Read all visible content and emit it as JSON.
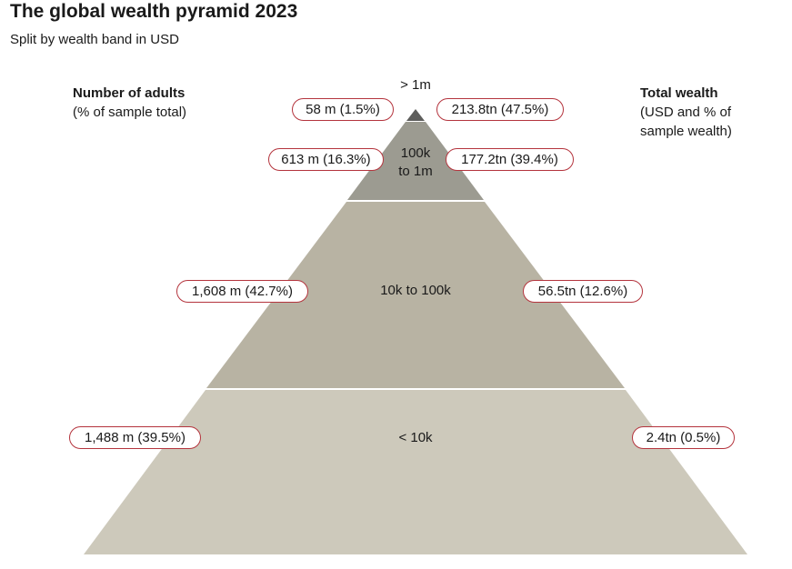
{
  "title": "The global wealth pyramid 2023",
  "subtitle": "Split by wealth band in USD",
  "left_heading": {
    "title": "Number of adults",
    "subtitle": "(% of sample total)"
  },
  "right_heading": {
    "title": "Total wealth",
    "subtitle_line1": "(USD and % of",
    "subtitle_line2": "sample wealth)"
  },
  "colors": {
    "band_top": "#5e5e5c",
    "band_upper": "#9c9b91",
    "band_middle": "#b8b3a3",
    "band_base": "#cdc9bb",
    "pill_border": "#b4343d"
  },
  "bands": [
    {
      "label": "> 1m",
      "adults": "58 m (1.5%)",
      "wealth": "213.8tn (47.5%)",
      "adults_millions": 58,
      "adults_pct": 1.5,
      "wealth_tn": 213.8,
      "wealth_pct": 47.5
    },
    {
      "label_line1": "100k",
      "label_line2": "to 1m",
      "adults": "613 m (16.3%)",
      "wealth": "177.2tn (39.4%)",
      "adults_millions": 613,
      "adults_pct": 16.3,
      "wealth_tn": 177.2,
      "wealth_pct": 39.4
    },
    {
      "label": "10k to 100k",
      "adults": "1,608 m (42.7%)",
      "wealth": "56.5tn (12.6%)",
      "adults_millions": 1608,
      "adults_pct": 42.7,
      "wealth_tn": 56.5,
      "wealth_pct": 12.6
    },
    {
      "label": "< 10k",
      "adults": "1,488 m (39.5%)",
      "wealth": "2.4tn (0.5%)",
      "adults_millions": 1488,
      "adults_pct": 39.5,
      "wealth_tn": 2.4,
      "wealth_pct": 0.5
    }
  ]
}
